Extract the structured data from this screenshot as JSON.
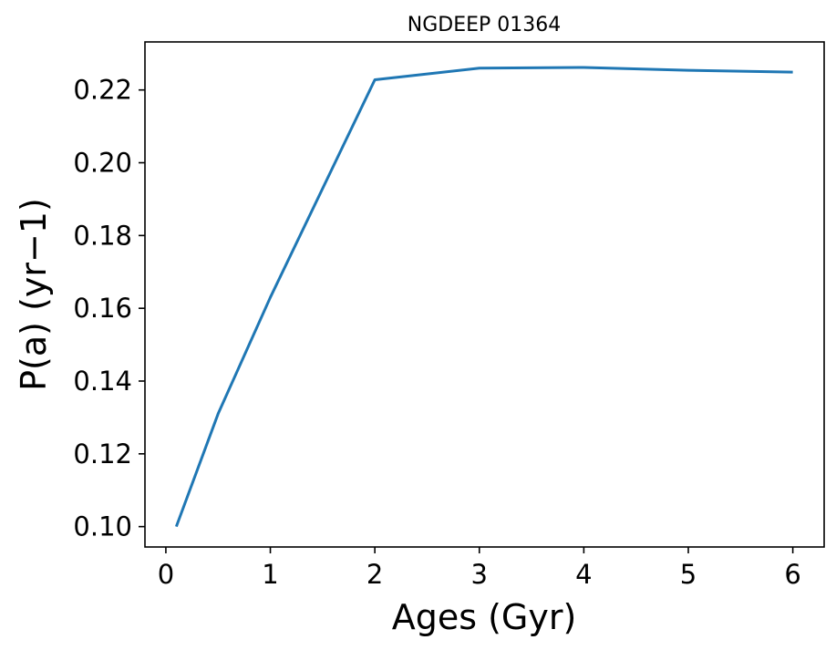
{
  "chart_data": {
    "type": "line",
    "title": "NGDEEP 01364",
    "xlabel": "Ages (Gyr)",
    "ylabel": "P(a) (yr−1)",
    "x": [
      0.1,
      0.5,
      1,
      2,
      3,
      4,
      5,
      6
    ],
    "series": [
      {
        "values": [
          0.1,
          0.131,
          0.163,
          0.2228,
          0.226,
          0.2262,
          0.2254,
          0.2249
        ],
        "color": "#1f77b4"
      }
    ],
    "xlim": [
      -0.2,
      6.3
    ],
    "ylim": [
      0.0944,
      0.2332
    ],
    "xticks": [
      0,
      1,
      2,
      3,
      4,
      5,
      6
    ],
    "xtick_labels": [
      "0",
      "1",
      "2",
      "3",
      "4",
      "5",
      "6"
    ],
    "yticks": [
      0.1,
      0.12,
      0.14,
      0.16,
      0.18,
      0.2,
      0.22
    ],
    "ytick_labels": [
      "0.10",
      "0.12",
      "0.14",
      "0.16",
      "0.18",
      "0.20",
      "0.22"
    ],
    "grid": false,
    "legend": "none"
  }
}
